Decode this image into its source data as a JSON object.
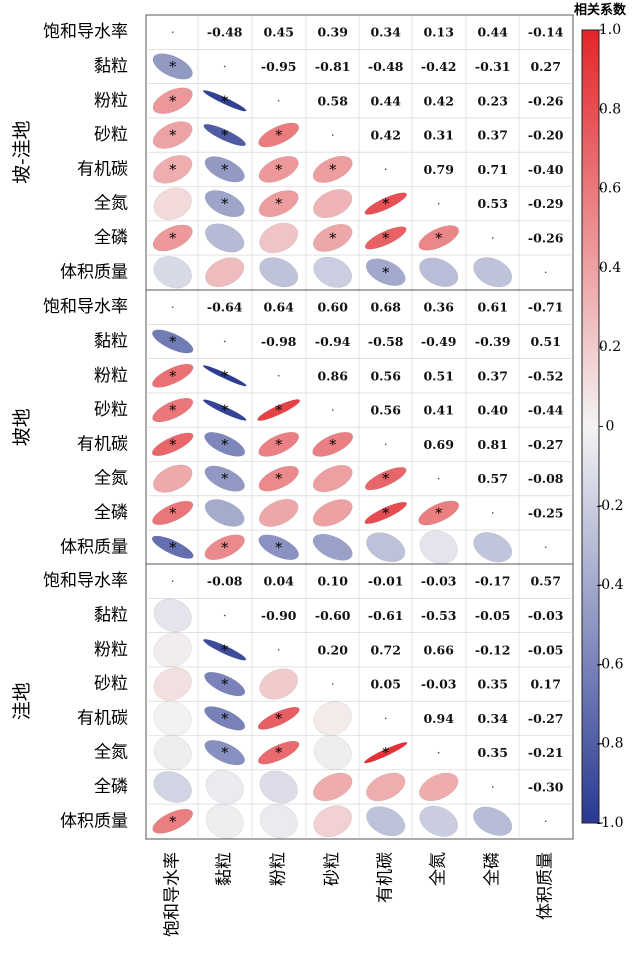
{
  "chart_data": {
    "type": "heatmap",
    "subtype": "correlation-ellipse-matrix",
    "variables": [
      "饱和导水率",
      "黏粒",
      "粉粒",
      "砂粒",
      "有机碳",
      "全氮",
      "全磷",
      "体积质量"
    ],
    "groups": [
      {
        "name": "坡-洼地",
        "matrix": [
          [
            1,
            -0.48,
            0.45,
            0.39,
            0.34,
            0.13,
            0.44,
            -0.14
          ],
          [
            -0.48,
            1,
            -0.95,
            -0.81,
            -0.48,
            -0.42,
            -0.31,
            0.27
          ],
          [
            0.45,
            -0.95,
            1,
            0.58,
            0.44,
            0.42,
            0.23,
            -0.26
          ],
          [
            0.39,
            -0.81,
            0.58,
            1,
            0.42,
            0.31,
            0.37,
            -0.2
          ],
          [
            0.34,
            -0.48,
            0.44,
            0.42,
            1,
            0.79,
            0.71,
            -0.4
          ],
          [
            0.13,
            -0.42,
            0.42,
            0.31,
            0.79,
            1,
            0.53,
            -0.29
          ],
          [
            0.44,
            -0.31,
            0.23,
            0.37,
            0.71,
            0.53,
            1,
            -0.26
          ],
          [
            -0.14,
            0.27,
            -0.26,
            -0.2,
            -0.4,
            -0.29,
            -0.26,
            1
          ]
        ],
        "significant_lower": [
          [
            1,
            0
          ],
          [
            2,
            0
          ],
          [
            2,
            1
          ],
          [
            3,
            0
          ],
          [
            3,
            1
          ],
          [
            3,
            2
          ],
          [
            4,
            0
          ],
          [
            4,
            1
          ],
          [
            4,
            2
          ],
          [
            4,
            3
          ],
          [
            5,
            1
          ],
          [
            5,
            2
          ],
          [
            5,
            4
          ],
          [
            6,
            0
          ],
          [
            6,
            3
          ],
          [
            6,
            4
          ],
          [
            6,
            5
          ],
          [
            7,
            4
          ]
        ]
      },
      {
        "name": "坡地",
        "matrix": [
          [
            1,
            -0.64,
            0.64,
            0.6,
            0.68,
            0.36,
            0.61,
            -0.71
          ],
          [
            -0.64,
            1,
            -0.98,
            -0.94,
            -0.58,
            -0.49,
            -0.39,
            0.51
          ],
          [
            0.64,
            -0.98,
            1,
            0.86,
            0.56,
            0.51,
            0.37,
            -0.52
          ],
          [
            0.6,
            -0.94,
            0.86,
            1,
            0.56,
            0.41,
            0.4,
            -0.44
          ],
          [
            0.68,
            -0.58,
            0.56,
            0.56,
            1,
            0.69,
            0.81,
            -0.27
          ],
          [
            0.36,
            -0.49,
            0.51,
            0.41,
            0.69,
            1,
            0.57,
            -0.08
          ],
          [
            0.61,
            -0.39,
            0.37,
            0.4,
            0.81,
            0.57,
            1,
            -0.25
          ],
          [
            -0.71,
            0.51,
            -0.52,
            -0.44,
            -0.27,
            -0.08,
            -0.25,
            1
          ]
        ],
        "significant_lower": [
          [
            1,
            0
          ],
          [
            2,
            0
          ],
          [
            2,
            1
          ],
          [
            3,
            0
          ],
          [
            3,
            1
          ],
          [
            3,
            2
          ],
          [
            4,
            0
          ],
          [
            4,
            1
          ],
          [
            4,
            2
          ],
          [
            4,
            3
          ],
          [
            5,
            1
          ],
          [
            5,
            2
          ],
          [
            5,
            4
          ],
          [
            6,
            0
          ],
          [
            6,
            4
          ],
          [
            6,
            5
          ],
          [
            7,
            0
          ],
          [
            7,
            1
          ],
          [
            7,
            2
          ]
        ]
      },
      {
        "name": "洼地",
        "matrix": [
          [
            1,
            -0.08,
            0.04,
            0.1,
            -0.01,
            -0.03,
            -0.17,
            0.57
          ],
          [
            -0.08,
            1,
            -0.9,
            -0.6,
            -0.61,
            -0.53,
            -0.05,
            -0.03
          ],
          [
            0.04,
            -0.9,
            1,
            0.2,
            0.72,
            0.66,
            -0.12,
            -0.05
          ],
          [
            0.1,
            -0.6,
            0.2,
            1,
            0.05,
            -0.03,
            0.35,
            0.17
          ],
          [
            -0.01,
            -0.61,
            0.72,
            0.05,
            1,
            0.94,
            0.34,
            -0.27
          ],
          [
            -0.03,
            -0.53,
            0.66,
            -0.03,
            0.94,
            1,
            0.35,
            -0.21
          ],
          [
            -0.17,
            -0.05,
            -0.12,
            0.35,
            0.34,
            0.35,
            1,
            -0.3
          ],
          [
            0.57,
            -0.03,
            -0.05,
            0.17,
            -0.27,
            -0.21,
            -0.3,
            1
          ]
        ],
        "significant_lower": [
          [
            2,
            1
          ],
          [
            3,
            1
          ],
          [
            4,
            1
          ],
          [
            4,
            2
          ],
          [
            5,
            1
          ],
          [
            5,
            2
          ],
          [
            5,
            4
          ],
          [
            7,
            0
          ]
        ]
      }
    ],
    "upper_label_nine": [
      "0.79",
      "0.94"
    ],
    "colorbar": {
      "title": "相关系数",
      "range": [
        -1.0,
        1.0
      ],
      "ticks": [
        "1.0",
        "0.8",
        "0.6",
        "0.4",
        "0.2",
        "0",
        "-0.2",
        "-0.4",
        "-0.6",
        "-0.8",
        "-1.0"
      ],
      "colors": {
        "negative": "#283891",
        "neutral": "#f4f4f4",
        "positive": "#e3252a"
      }
    },
    "significance_marker": "*"
  }
}
